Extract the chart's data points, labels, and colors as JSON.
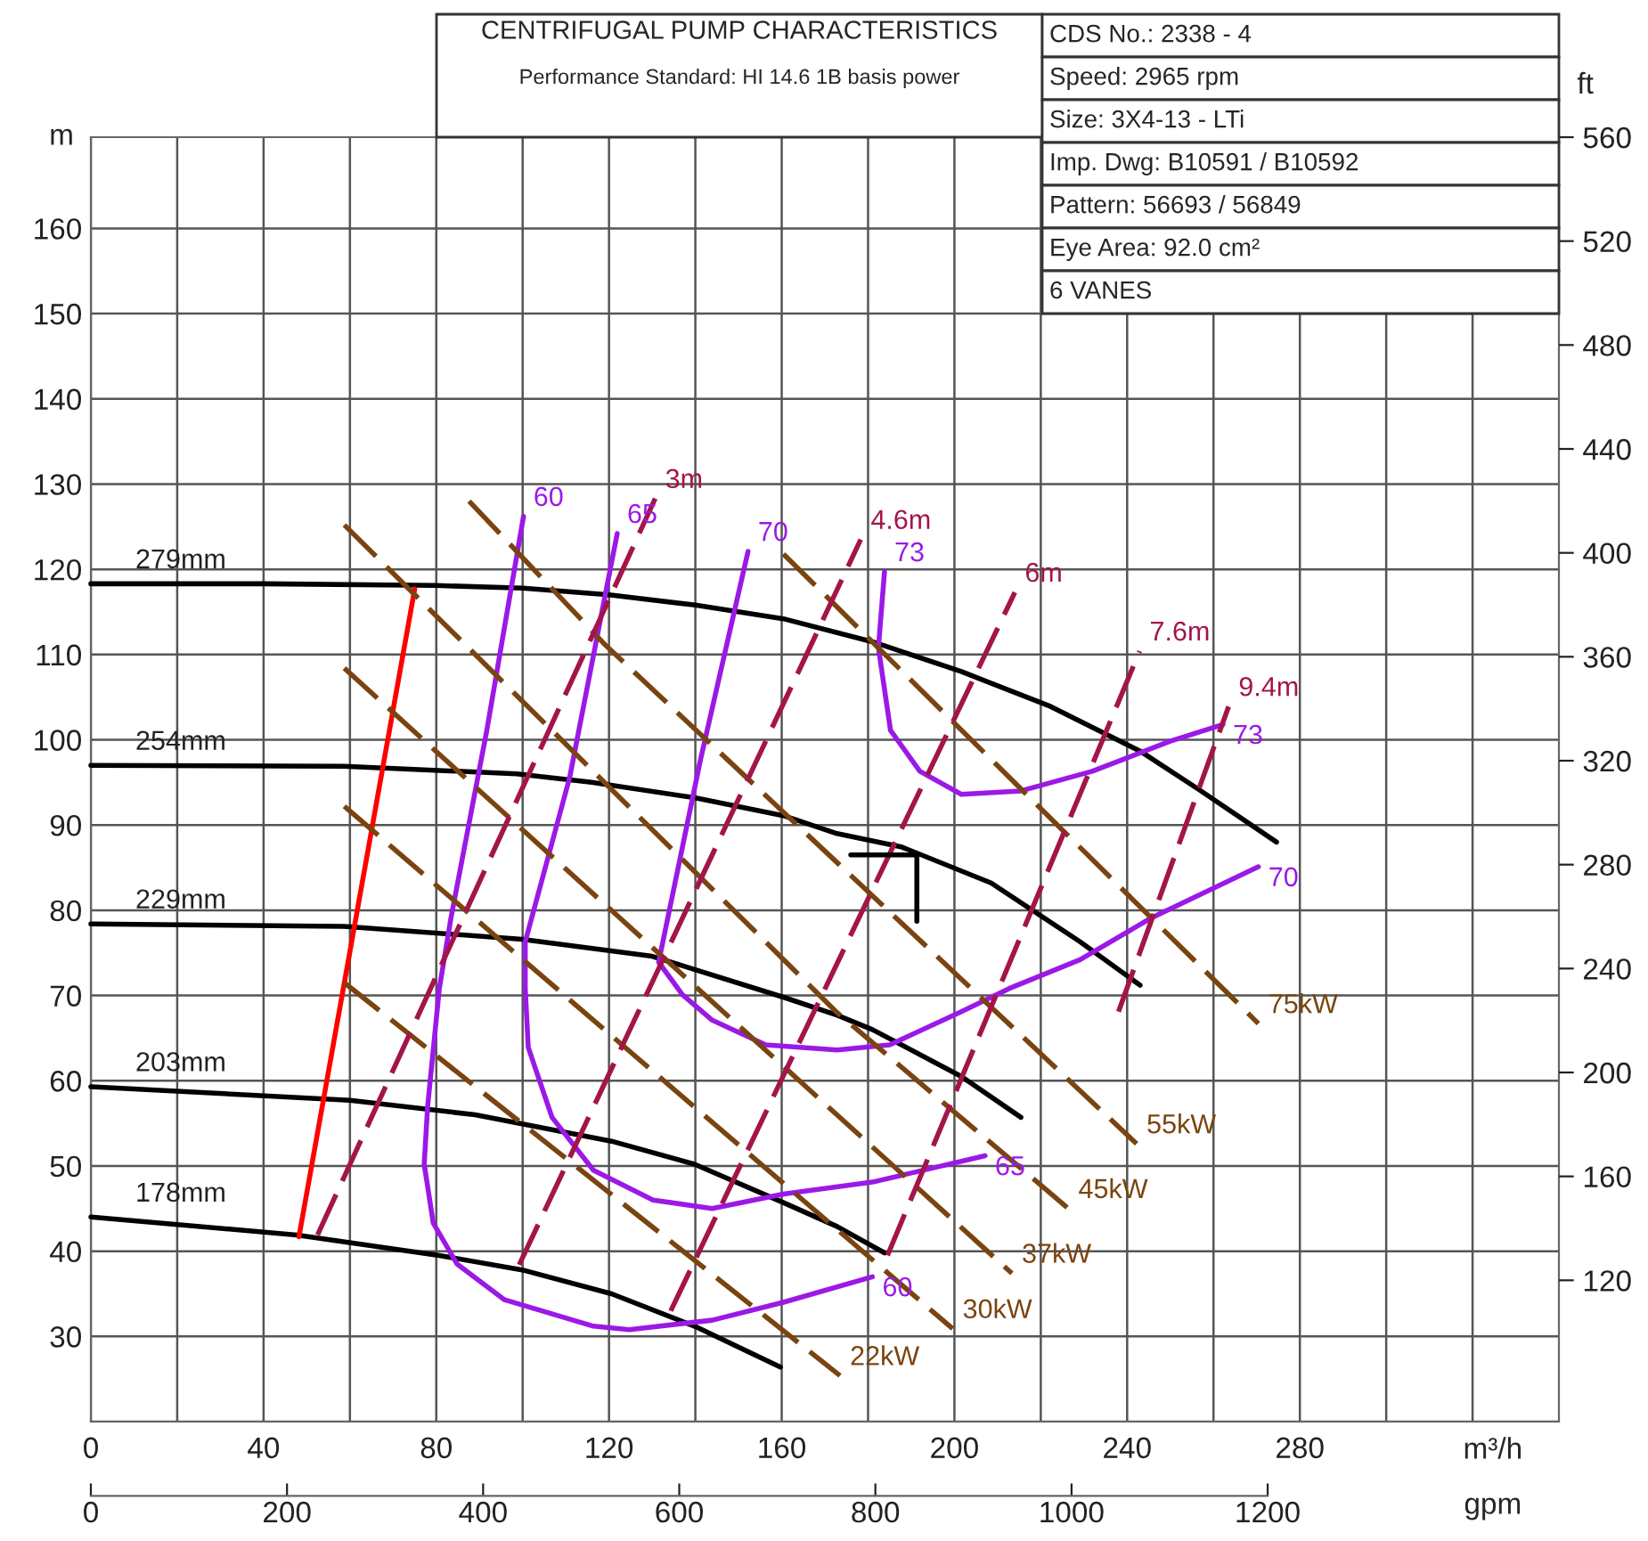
{
  "chart_data": {
    "type": "line",
    "title": "CENTRIFUGAL PUMP CHARACTERISTICS",
    "subtitle": "Performance Standard: HI 14.6 1B basis power",
    "xlabel": "m³/h",
    "x2label": "gpm",
    "ylabel": "m",
    "y2label": "ft",
    "xlim": [
      0,
      340
    ],
    "ylim": [
      20,
      170.7
    ],
    "x2lim": [
      0,
      1497
    ],
    "y2lim": [
      65.6,
      560
    ],
    "xticks": [
      0,
      {
        "value": 20,
        "label": null
      },
      40,
      {
        "value": 60,
        "label": null
      },
      80,
      {
        "value": 100,
        "label": null
      },
      120,
      {
        "value": 140,
        "label": null
      },
      160,
      {
        "value": 180,
        "label": null
      },
      200,
      {
        "value": 220,
        "label": null
      },
      240,
      {
        "value": 260,
        "label": null
      },
      280,
      {
        "value": 300,
        "label": null
      },
      {
        "value": 320,
        "label": null
      }
    ],
    "yticks": [
      {
        "value": 20,
        "label": null
      },
      30,
      40,
      50,
      60,
      70,
      80,
      90,
      100,
      110,
      120,
      130,
      140,
      150,
      160
    ],
    "x2ticks": [
      0,
      200,
      400,
      600,
      800,
      1000,
      1200
    ],
    "y2ticks": [
      120,
      160,
      200,
      240,
      280,
      320,
      360,
      400,
      440,
      480,
      520,
      560
    ],
    "grid": true,
    "legend": false,
    "series": [
      {
        "name": "279mm",
        "color": "#000000",
        "x": [
          0,
          40,
          80,
          100,
          120,
          140,
          160.4,
          181,
          201.6,
          222.3,
          242.9,
          256.5,
          274.6
        ],
        "values": [
          118.3,
          118.3,
          118.1,
          117.8,
          117.0,
          115.8,
          114.2,
          111.5,
          108.0,
          103.9,
          98.7,
          94.2,
          88.0
        ]
      },
      {
        "name": "254mm",
        "color": "#000000",
        "x": [
          0,
          58.6,
          98.6,
          116,
          139.8,
          160.4,
          172.8,
          187.9,
          208.5,
          229.1,
          243
        ],
        "values": [
          97.0,
          96.9,
          96.0,
          95.0,
          93.2,
          91.1,
          89.0,
          87.4,
          83.2,
          76.3,
          71.2
        ]
      },
      {
        "name": "229mm",
        "color": "#000000",
        "x": [
          0,
          58.6,
          99.9,
          130,
          160.4,
          172.8,
          181,
          201.6,
          215.4
        ],
        "values": [
          78.4,
          78.1,
          76.6,
          74.6,
          69.8,
          67.7,
          66.0,
          60.5,
          55.7
        ]
      },
      {
        "name": "203mm",
        "color": "#000000",
        "x": [
          0,
          60,
          89,
          120.6,
          139.8,
          160.4,
          172.8,
          183.8
        ],
        "values": [
          59.3,
          57.7,
          56.0,
          52.9,
          50.2,
          45.7,
          42.9,
          39.8
        ]
      },
      {
        "name": "178mm",
        "color": "#000000",
        "x": [
          0,
          47.7,
          80.7,
          99.9,
          120.6,
          139.8,
          159.7
        ],
        "values": [
          44.0,
          41.9,
          39.5,
          37.8,
          35.0,
          31.2,
          26.4
        ]
      },
      {
        "color": "#ff0000",
        "x": [
          48.2,
          75
        ],
        "values": [
          41.7,
          117.7
        ]
      },
      {
        "name": "60",
        "color": "#9b19e6",
        "x": [
          100.2,
          91.7,
          83.4,
          80.7,
          78,
          77.2,
          79.3,
          84.8,
          95.8,
          116.4,
          124.7,
          143.9,
          160.4,
          181
        ],
        "values": [
          126.2,
          101.1,
          79.1,
          70.8,
          57.0,
          50.2,
          43.3,
          38.5,
          34.3,
          31.2,
          30.8,
          31.9,
          34.0,
          37.0
        ]
      },
      {
        "name": "65",
        "color": "#9b19e6",
        "x": [
          121.9,
          110.9,
          100.6,
          100.6,
          101.3,
          106.8,
          116.4,
          130.2,
          143.9,
          160.4,
          181,
          207.1
        ],
        "values": [
          124.2,
          95.6,
          76.3,
          70.8,
          63.9,
          55.7,
          49.5,
          46.0,
          45.0,
          46.7,
          48.1,
          51.2
        ]
      },
      {
        "name": "70",
        "color": "#9b19e6",
        "x": [
          152.2,
          141.2,
          131.5,
          137,
          143.9,
          156.3,
          172.8,
          185,
          201.6,
          212.6,
          229.1,
          245.6,
          270.4
        ],
        "values": [
          122.1,
          97.7,
          73.9,
          70.1,
          67.1,
          64.2,
          63.6,
          64.2,
          68.1,
          70.8,
          74.2,
          79.1,
          85.1
        ]
      },
      {
        "name": "73",
        "color": "#9b19e6",
        "x": [
          183.8,
          182.4,
          185.2,
          192,
          201.6,
          215.4,
          231.9,
          249.8,
          262.2
        ],
        "values": [
          119.7,
          110.8,
          101.1,
          96.3,
          93.6,
          94.0,
          96.3,
          99.8,
          101.8
        ]
      },
      {
        "name": "22kW",
        "color": "#7a4410",
        "line_style": "dashed",
        "x": [
          58.7,
          173.5
        ],
        "values": [
          71.5,
          25.4
        ]
      },
      {
        "name": "30kW",
        "color": "#7a4410",
        "line_style": "dashed",
        "x": [
          58.7,
          199.6
        ],
        "values": [
          92.2,
          30.9
        ]
      },
      {
        "name": "37kW",
        "color": "#7a4410",
        "line_style": "dashed",
        "x": [
          58.7,
          213.3
        ],
        "values": [
          108.4,
          37.4
        ]
      },
      {
        "name": "45kW",
        "color": "#7a4410",
        "line_style": "dashed",
        "x": [
          58.7,
          172.8,
          226.4
        ],
        "values": [
          125.2,
          68.0,
          45.0
        ]
      },
      {
        "name": "55kW",
        "color": "#7a4410",
        "line_style": "dashed",
        "x": [
          87.6,
          119.2,
          242.2
        ],
        "values": [
          128.0,
          111.1,
          52.6
        ]
      },
      {
        "name": "75kW",
        "color": "#7a4410",
        "line_style": "dashed",
        "x": [
          160.4,
          245.6,
          270.4
        ],
        "values": [
          121.8,
          79.1,
          66.7
        ]
      },
      {
        "name": "3m",
        "color": "#a3154a",
        "line_style": "dashed",
        "x": [
          52.5,
          130.7
        ],
        "values": [
          41.9,
          128.3
        ]
      },
      {
        "name": "4.6m",
        "color": "#a3154a",
        "line_style": "dashed",
        "x": [
          99.2,
          178.3
        ],
        "values": [
          38.4,
          123.5
        ]
      },
      {
        "name": "6m",
        "color": "#a3154a",
        "line_style": "dashed",
        "x": [
          134.3,
          214
        ],
        "values": [
          33.0,
          117.3
        ]
      },
      {
        "name": "7.6m",
        "color": "#a3154a",
        "line_style": "dashed",
        "x": [
          184.5,
          242.9
        ],
        "values": [
          39.5,
          110.4
        ]
      },
      {
        "name": "9.4m",
        "color": "#a3154a",
        "line_style": "dashed",
        "x": [
          238,
          263.5
        ],
        "values": [
          68.1,
          103.9
        ]
      },
      {
        "color": "#000000",
        "x": [
          176,
          191.3,
          191.3
        ],
        "values": [
          86.5,
          86.5,
          78.7
        ]
      }
    ],
    "annotations": [
      "CDS No.: 2338 - 4",
      "Speed: 2965 rpm",
      "Size: 3X4-13 - LTi",
      "Imp. Dwg: B10591 / B10592",
      "Pattern: 56693 / 56849",
      "Eye Area: 92.0 cm²",
      "6 VANES"
    ]
  }
}
